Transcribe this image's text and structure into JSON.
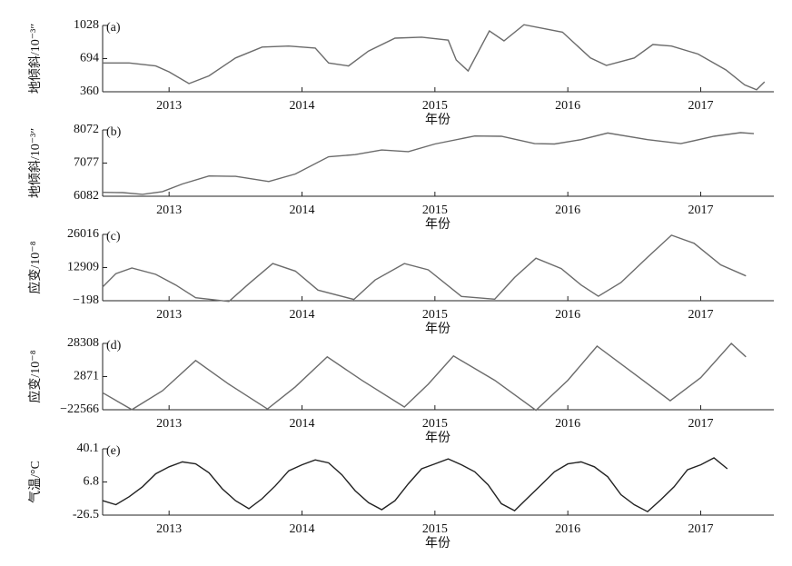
{
  "chart_data": [
    {
      "type": "line",
      "label": "(a)",
      "ylabel": "地倾斜/10⁻³″",
      "xlabel": "年份",
      "color": "#6b6b6b",
      "xlim": [
        2012.5,
        2017.55
      ],
      "xticks": [
        2013,
        2014,
        2015,
        2016,
        2017
      ],
      "ylim": [
        360,
        1028
      ],
      "yticks": [
        360,
        694,
        1028
      ],
      "x": [
        2012.5,
        2012.7,
        2012.9,
        2013.0,
        2013.15,
        2013.3,
        2013.5,
        2013.7,
        2013.9,
        2014.1,
        2014.2,
        2014.35,
        2014.5,
        2014.7,
        2014.9,
        2015.1,
        2015.16,
        2015.25,
        2015.41,
        2015.52,
        2015.67,
        2015.96,
        2016.17,
        2016.29,
        2016.5,
        2016.64,
        2016.78,
        2016.98,
        2017.19,
        2017.33,
        2017.42,
        2017.48
      ],
      "values": [
        650,
        650,
        620,
        560,
        442,
        520,
        700,
        810,
        820,
        800,
        650,
        620,
        770,
        900,
        910,
        880,
        680,
        570,
        973,
        872,
        1035,
        960,
        700,
        625,
        700,
        836,
        820,
        740,
        580,
        430,
        380,
        460
      ]
    },
    {
      "type": "line",
      "label": "(b)",
      "ylabel": "地倾斜/10⁻³″",
      "xlabel": "年份",
      "color": "#6b6b6b",
      "xlim": [
        2012.5,
        2017.55
      ],
      "xticks": [
        2013,
        2014,
        2015,
        2016,
        2017
      ],
      "ylim": [
        6082,
        8072
      ],
      "yticks": [
        6082,
        7077,
        8072
      ],
      "x": [
        2012.5,
        2012.65,
        2012.8,
        2012.95,
        2013.1,
        2013.3,
        2013.5,
        2013.75,
        2013.95,
        2014.2,
        2014.4,
        2014.6,
        2014.8,
        2015.0,
        2015.3,
        2015.5,
        2015.75,
        2015.9,
        2016.1,
        2016.3,
        2016.6,
        2016.85,
        2017.1,
        2017.3,
        2017.4
      ],
      "values": [
        6200,
        6190,
        6140,
        6220,
        6450,
        6690,
        6680,
        6524,
        6750,
        7269,
        7330,
        7470,
        7420,
        7650,
        7890,
        7880,
        7660,
        7650,
        7780,
        7980,
        7780,
        7660,
        7880,
        7990,
        7960
      ]
    },
    {
      "type": "line",
      "label": "(c)",
      "ylabel": "应变/10⁻⁸",
      "xlabel": "年份",
      "color": "#6b6b6b",
      "xlim": [
        2012.5,
        2017.55
      ],
      "xticks": [
        2013,
        2014,
        2015,
        2016,
        2017
      ],
      "ylim": [
        -198,
        26016
      ],
      "yticks": [
        {
          "value": -198,
          "label": "−198"
        },
        12909,
        26016
      ],
      "x": [
        2012.5,
        2012.6,
        2012.72,
        2012.9,
        2013.05,
        2013.2,
        2013.45,
        2013.6,
        2013.78,
        2013.95,
        2014.12,
        2014.39,
        2014.55,
        2014.77,
        2014.95,
        2015.2,
        2015.45,
        2015.6,
        2015.76,
        2015.95,
        2016.1,
        2016.23,
        2016.4,
        2016.6,
        2016.78,
        2016.95,
        2017.15,
        2017.34
      ],
      "values": [
        5230,
        10500,
        12730,
        10200,
        6000,
        1000,
        -500,
        6500,
        14500,
        11500,
        4000,
        300,
        8000,
        14500,
        12000,
        1500,
        400,
        9000,
        16600,
        12500,
        6000,
        1550,
        7000,
        17000,
        25700,
        22500,
        14000,
        9600
      ]
    },
    {
      "type": "line",
      "label": "(d)",
      "ylabel": "应变/10⁻⁸",
      "xlabel": "年份",
      "color": "#6b6b6b",
      "xlim": [
        2012.5,
        2017.55
      ],
      "xticks": [
        2013,
        2014,
        2015,
        2016,
        2017
      ],
      "ylim": [
        -22566,
        28308
      ],
      "yticks": [
        {
          "value": -22566,
          "label": "−22566"
        },
        2871,
        28308
      ],
      "x": [
        2012.5,
        2012.72,
        2012.95,
        2013.2,
        2013.45,
        2013.74,
        2013.95,
        2014.19,
        2014.45,
        2014.77,
        2014.95,
        2015.14,
        2015.45,
        2015.76,
        2016.0,
        2016.22,
        2016.5,
        2016.77,
        2017.0,
        2017.23,
        2017.34
      ],
      "values": [
        -9500,
        -22500,
        -8000,
        15200,
        -3000,
        -22000,
        -5000,
        18000,
        0,
        -20500,
        -3000,
        18700,
        0,
        -23000,
        0,
        26200,
        5000,
        -15700,
        2000,
        28300,
        18000
      ]
    },
    {
      "type": "line",
      "label": "(e)",
      "ylabel": "气温/°C",
      "xlabel": "年份",
      "color": "#222222",
      "xlim": [
        2012.5,
        2017.55
      ],
      "xticks": [
        2013,
        2014,
        2015,
        2016,
        2017
      ],
      "ylim": [
        -26.5,
        40.1
      ],
      "yticks": [
        -26.5,
        6.8,
        40.1
      ],
      "x": [
        2012.5,
        2012.6,
        2012.7,
        2012.8,
        2012.9,
        2013.0,
        2013.1,
        2013.2,
        2013.3,
        2013.4,
        2013.5,
        2013.6,
        2013.7,
        2013.8,
        2013.9,
        2014.0,
        2014.1,
        2014.2,
        2014.3,
        2014.4,
        2014.5,
        2014.6,
        2014.7,
        2014.8,
        2014.9,
        2015.0,
        2015.1,
        2015.2,
        2015.3,
        2015.4,
        2015.5,
        2015.6,
        2015.7,
        2015.8,
        2015.9,
        2016.0,
        2016.1,
        2016.2,
        2016.3,
        2016.4,
        2016.5,
        2016.6,
        2016.7,
        2016.8,
        2016.9,
        2017.0,
        2017.1,
        2017.2
      ],
      "values": [
        -12,
        -16,
        -8,
        2,
        15,
        22,
        27,
        25,
        16,
        0,
        -12,
        -20,
        -10,
        3,
        18,
        24,
        29,
        26,
        14,
        -2,
        -14,
        -21,
        -12,
        5,
        20,
        25,
        30,
        24,
        17,
        4,
        -15,
        -22,
        -9,
        4,
        17,
        25,
        27,
        22,
        12,
        -6,
        -16,
        -23,
        -11,
        2,
        19,
        24,
        31,
        20
      ]
    }
  ]
}
